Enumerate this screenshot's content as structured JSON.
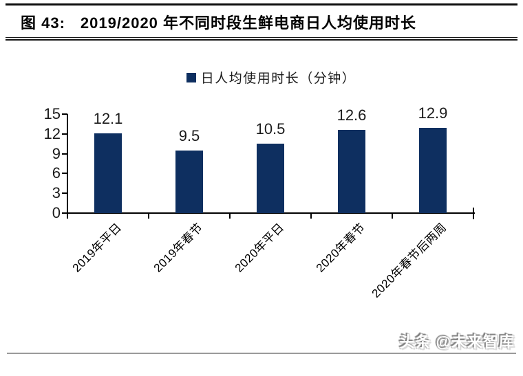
{
  "header": {
    "figure_label": "图 43:",
    "title": "2019/2020 年不同时段生鲜电商日人均使用时长"
  },
  "chart_data": {
    "type": "bar",
    "legend": "日人均使用时长（分钟）",
    "legend_position": "top-center",
    "categories": [
      "2019年平日",
      "2019年春节",
      "2020年平日",
      "2020年春节",
      "2020年春节后两周"
    ],
    "values": [
      12.1,
      9.5,
      10.5,
      12.6,
      12.9
    ],
    "value_labels": [
      "12.1",
      "9.5",
      "10.5",
      "12.6",
      "12.9"
    ],
    "ylim": [
      0,
      15
    ],
    "yticks": [
      0,
      3,
      6,
      9,
      12,
      15
    ],
    "grid": false,
    "bar_color": "#0e2f60"
  },
  "watermark": "头条 @未来智库",
  "colors": {
    "bar": "#0e2f60",
    "axis": "#000000",
    "title_rule": "#141414",
    "bottom_rule": "#9a9a9a"
  }
}
